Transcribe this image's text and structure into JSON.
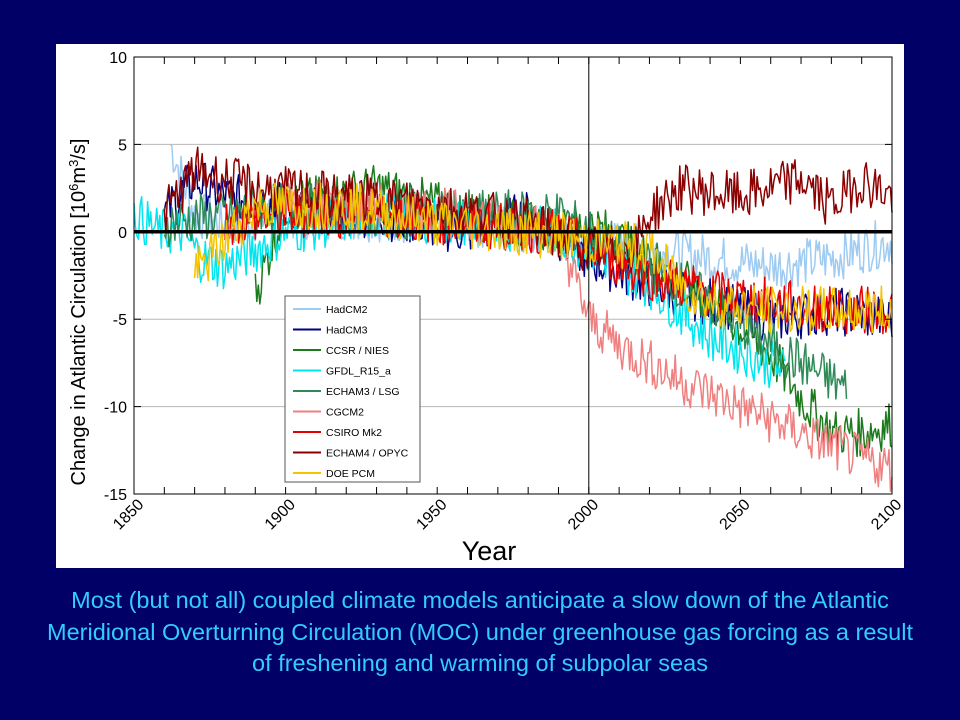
{
  "caption": "Most (but not all) coupled climate models anticipate a slow down of the Atlantic Meridional Overturning Circulation (MOC) under greenhouse gas forcing as a result of freshening and warming of subpolar seas",
  "colors": {
    "background": "#000066",
    "caption_text": "#33ccff",
    "panel": "#ffffff"
  },
  "chart_data": {
    "type": "line",
    "title": "",
    "xlabel": "Year",
    "ylabel": "Change in Atlantic Circulation [10⁶m³/s]",
    "ylabel_main": "Change in Atlantic Circulation [10",
    "ylabel_exp": "6",
    "ylabel_unit": "m",
    "ylabel_exp2": "3",
    "ylabel_end": "/s]",
    "xlim": [
      1850,
      2100
    ],
    "ylim": [
      -15,
      10
    ],
    "xticks": [
      1850,
      1900,
      1950,
      2000,
      2050,
      2100
    ],
    "xtick_labels": [
      "1850",
      "1900",
      "1950",
      "2000",
      "2050",
      "2100"
    ],
    "yticks": [
      10,
      5,
      0,
      -5,
      -10,
      -15
    ],
    "ytick_labels": [
      "10",
      "5",
      "0",
      "-5",
      "-10",
      "-15"
    ],
    "grid": true,
    "reference_line": {
      "y": 0,
      "label": ""
    },
    "vertical_marker": {
      "x": 2000
    },
    "legend_position": "lower-left",
    "series": [
      {
        "name": "HadCM2",
        "color": "#9ecbf2",
        "start": 1862,
        "end": 2100,
        "x": [
          1862,
          1870,
          1880,
          1900,
          1930,
          1960,
          1990,
          2000,
          2020,
          2040,
          2060,
          2080,
          2100
        ],
        "values": [
          5.0,
          1.0,
          0.5,
          1.0,
          0.8,
          0.5,
          0.0,
          -0.5,
          -1.0,
          -1.5,
          -2.0,
          -1.5,
          -0.5
        ]
      },
      {
        "name": "HadCM3",
        "color": "#000080",
        "start": 1860,
        "end": 2100,
        "x": [
          1860,
          1870,
          1880,
          1900,
          1930,
          1960,
          1980,
          2000,
          2020,
          2040,
          2060,
          2080,
          2100
        ],
        "values": [
          1.0,
          3.0,
          2.0,
          1.5,
          1.0,
          0.0,
          1.0,
          -1.5,
          -3.0,
          -4.0,
          -5.0,
          -4.5,
          -5.0
        ]
      },
      {
        "name": "CCSR / NIES",
        "color": "#1b7a1b",
        "start": 1890,
        "end": 2100,
        "x": [
          1890,
          1900,
          1930,
          1960,
          1990,
          2000,
          2020,
          2040,
          2060,
          2070,
          2080,
          2090,
          2100
        ],
        "values": [
          -3.5,
          1.5,
          2.5,
          1.0,
          0.0,
          0.5,
          -1.5,
          -4.0,
          -7.0,
          -9.5,
          -11.5,
          -11.5,
          -11.0
        ]
      },
      {
        "name": "GFDL_R15_a",
        "color": "#00e5ee",
        "start": 1850,
        "end": 2065,
        "x": [
          1850,
          1858,
          1866,
          1872,
          1880,
          1900,
          1930,
          1960,
          1990,
          2000,
          2020,
          2040,
          2065
        ],
        "values": [
          1.0,
          0.0,
          0.0,
          -1.5,
          -2.0,
          0.0,
          1.0,
          0.5,
          0.0,
          -1.0,
          -3.0,
          -6.0,
          -8.0
        ]
      },
      {
        "name": "ECHAM3 / LSG",
        "color": "#2e8b57",
        "start": 1860,
        "end": 2085,
        "x": [
          1860,
          1880,
          1900,
          1930,
          1960,
          1990,
          2000,
          2020,
          2040,
          2060,
          2085
        ],
        "values": [
          0.5,
          1.0,
          1.5,
          1.0,
          1.0,
          1.0,
          0.0,
          -2.0,
          -4.0,
          -6.5,
          -9.0
        ]
      },
      {
        "name": "CGCM2",
        "color": "#f08080",
        "start": 1900,
        "end": 2100,
        "x": [
          1900,
          1930,
          1960,
          1990,
          2000,
          2010,
          2030,
          2050,
          2070,
          2090,
          2100
        ],
        "values": [
          2.0,
          1.5,
          1.0,
          0.0,
          -5.0,
          -6.5,
          -8.5,
          -10.0,
          -11.5,
          -13.0,
          -13.5
        ]
      },
      {
        "name": "CSIRO Mk2",
        "color": "#e60000",
        "start": 1880,
        "end": 2100,
        "x": [
          1880,
          1900,
          1930,
          1960,
          1990,
          2000,
          2020,
          2040,
          2060,
          2080,
          2100
        ],
        "values": [
          0.5,
          1.0,
          1.0,
          0.5,
          0.0,
          -1.0,
          -2.5,
          -3.5,
          -4.0,
          -4.5,
          -4.5
        ]
      },
      {
        "name": "ECHAM4 / OPYC",
        "color": "#8b0000",
        "start": 1860,
        "end": 2100,
        "x": [
          1860,
          1870,
          1890,
          1920,
          1950,
          1980,
          2000,
          2015,
          2020,
          2030,
          2050,
          2070,
          2080,
          2090,
          2100
        ],
        "values": [
          1.0,
          3.5,
          2.5,
          2.0,
          1.5,
          0.5,
          -1.0,
          -1.0,
          1.0,
          2.5,
          2.0,
          3.0,
          1.5,
          3.0,
          2.0
        ]
      },
      {
        "name": "DOE PCM",
        "color": "#f5c400",
        "start": 1870,
        "end": 2100,
        "x": [
          1870,
          1890,
          1920,
          1950,
          1980,
          2000,
          2020,
          2030,
          2040,
          2060,
          2080,
          2100
        ],
        "values": [
          -2.5,
          1.5,
          1.5,
          0.5,
          0.0,
          -0.5,
          -1.0,
          -3.0,
          -4.0,
          -4.5,
          -4.5,
          -4.5
        ]
      }
    ]
  }
}
